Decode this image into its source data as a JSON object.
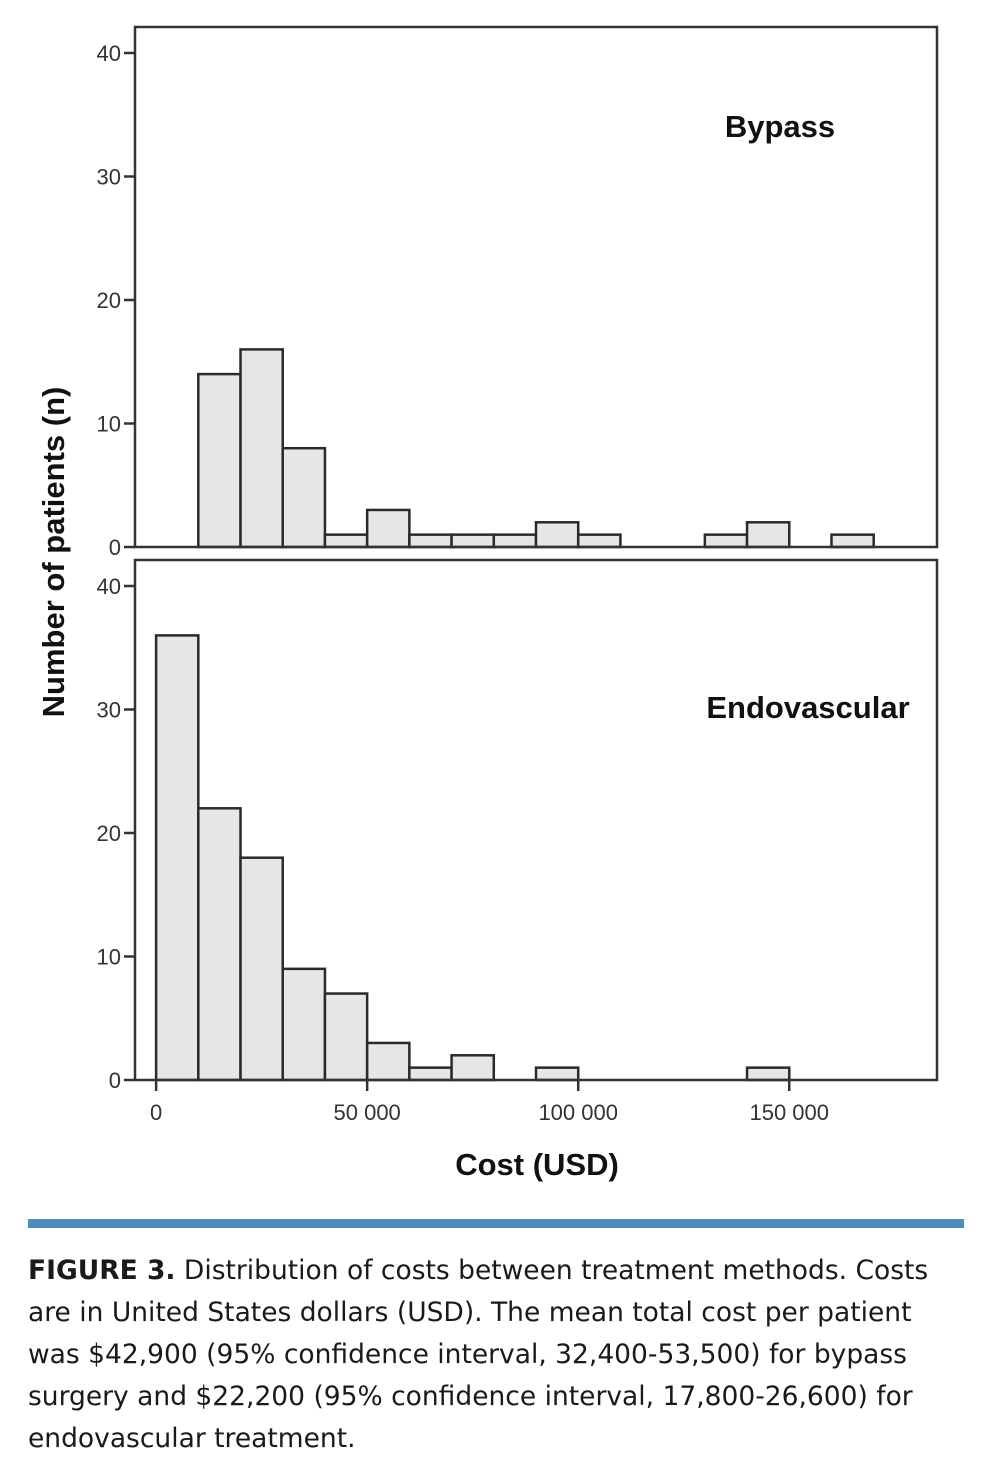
{
  "chart_data": {
    "type": "bar",
    "subtype": "histogram",
    "xlabel": "Cost (USD)",
    "ylabel": "Number of patients (n)",
    "x_ticks": [
      0,
      50000,
      100000,
      150000
    ],
    "x_tick_labels": [
      "0",
      "50 000",
      "100 000",
      "150 000"
    ],
    "xlim": [
      -5000,
      185000
    ],
    "bin_width": 10000,
    "y_ticks": [
      0,
      10,
      20,
      30,
      40
    ],
    "ylim": [
      0,
      40.5
    ],
    "panels": [
      {
        "name": "Bypass",
        "bin_starts": [
          10000,
          20000,
          30000,
          40000,
          50000,
          60000,
          70000,
          80000,
          90000,
          100000,
          130000,
          140000,
          160000
        ],
        "values": [
          14,
          16,
          8,
          1,
          3,
          1,
          1,
          1,
          2,
          1,
          1,
          2,
          1
        ]
      },
      {
        "name": "Endovascular",
        "bin_starts": [
          0,
          10000,
          20000,
          30000,
          40000,
          50000,
          60000,
          70000,
          90000,
          140000
        ],
        "values": [
          36,
          22,
          18,
          9,
          7,
          3,
          1,
          2,
          1,
          1
        ]
      }
    ],
    "grid": false,
    "colors": {
      "bar_fill": "#e6e6e6",
      "bar_stroke": "#2a2a2a",
      "divider": "#4b8dba"
    }
  },
  "caption": {
    "label": "FIGURE 3.",
    "text": "Distribution of costs between treatment methods. Costs are in United States dollars (USD). The mean total cost per patient was $42,900 (95% confidence interval, 32,400-53,500) for bypass surgery and $22,200 (95% confidence interval, 17,800-26,600) for endovascular treatment."
  }
}
